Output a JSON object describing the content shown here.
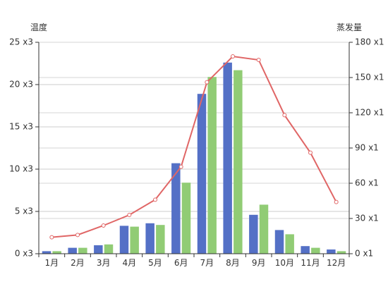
{
  "chart_data": {
    "type": "bar",
    "categories": [
      "1月",
      "2月",
      "3月",
      "4月",
      "5月",
      "6月",
      "7月",
      "8月",
      "9月",
      "10月",
      "11月",
      "12月"
    ],
    "series": [
      {
        "type": "bar",
        "values": [
          0.3,
          0.7,
          1.0,
          3.3,
          3.6,
          10.7,
          18.9,
          22.6,
          4.6,
          2.8,
          0.9,
          0.5
        ],
        "color": "#5470c6",
        "axis": "left"
      },
      {
        "type": "bar",
        "values": [
          0.3,
          0.7,
          1.1,
          3.2,
          3.4,
          8.4,
          20.9,
          21.7,
          5.8,
          2.3,
          0.7,
          0.3
        ],
        "color": "#91cc75",
        "axis": "left"
      },
      {
        "type": "line",
        "values": [
          14,
          16,
          24,
          33,
          46,
          74,
          146,
          168,
          165,
          118,
          86,
          44
        ],
        "color": "#e06666",
        "axis": "right"
      }
    ],
    "y_left": {
      "label": "温度",
      "min": 0,
      "max": 25,
      "interval": 5,
      "tick_labels": [
        "0 x3",
        "5 x3",
        "10 x3",
        "15 x3",
        "20 x3",
        "25 x3"
      ]
    },
    "y_right": {
      "label": "蒸发量",
      "min": 0,
      "max": 180,
      "interval": 30,
      "tick_labels": [
        "0 x1",
        "30 x1",
        "60 x1",
        "90 x1",
        "120 x1",
        "150 x1",
        "180 x1"
      ]
    },
    "grid": true,
    "legend": "none"
  }
}
